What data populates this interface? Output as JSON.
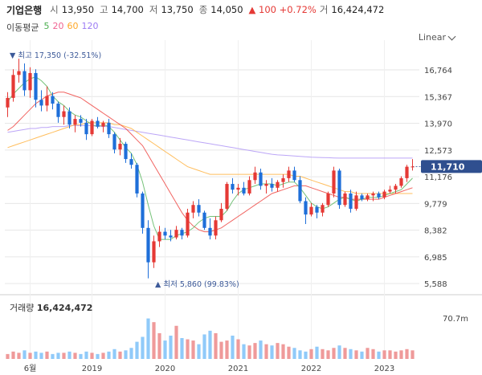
{
  "header": {
    "name": "기업은행",
    "open_label": "시",
    "open": "13,950",
    "high_label": "고",
    "high": "14,700",
    "low_label": "저",
    "low": "13,750",
    "close_label": "종",
    "close": "14,050",
    "change": "▲ 100 +0.72%",
    "volume_label": "거",
    "volume": "16,424,472"
  },
  "ma": {
    "title": "이동평균",
    "items": [
      {
        "label": "5",
        "color": "#4caf50"
      },
      {
        "label": "20",
        "color": "#f06292"
      },
      {
        "label": "60",
        "color": "#ffa726"
      },
      {
        "label": "120",
        "color": "#9c7cf4"
      }
    ]
  },
  "scale_mode": "Linear",
  "annotations": {
    "high": "▼ 최고 17,350 (-32.51%)",
    "low": "▲ 최저 5,860 (99.83%)"
  },
  "current_price": "11,710",
  "volume_section": {
    "title": "거래량",
    "value": "16,424,472",
    "axis_label": "70.7m"
  },
  "colors": {
    "up": "#e53935",
    "down": "#1e6fd9",
    "price_tag": "#2f4f8f",
    "grid": "#e6e6e6"
  },
  "chart_data": {
    "type": "candlestick",
    "title": "기업은행",
    "y_ticks": [
      16764,
      15367,
      13970,
      12573,
      11176,
      9779,
      8382,
      6985,
      5588
    ],
    "y_tick_labels": [
      "16,764",
      "15,367",
      "13,970",
      "12,573",
      "11,176",
      "9,779",
      "8,382",
      "6,985",
      "5,588"
    ],
    "ylim": [
      5300,
      17900
    ],
    "x_tick_labels": [
      "6월",
      "2019",
      "2020",
      "2021",
      "2022",
      "2023"
    ],
    "x_tick_index": [
      4,
      15,
      28,
      41,
      54,
      67
    ],
    "ohlc": [
      [
        14800,
        15600,
        14300,
        15300
      ],
      [
        15300,
        16800,
        15100,
        16500
      ],
      [
        16500,
        17350,
        16100,
        16700
      ],
      [
        16700,
        17100,
        15400,
        15700
      ],
      [
        15700,
        16900,
        15300,
        16600
      ],
      [
        16600,
        16800,
        14800,
        15200
      ],
      [
        15200,
        15700,
        14600,
        14900
      ],
      [
        14900,
        15900,
        14600,
        15400
      ],
      [
        15400,
        15600,
        14700,
        15000
      ],
      [
        15000,
        15100,
        14000,
        14300
      ],
      [
        14300,
        14900,
        13900,
        14600
      ],
      [
        14600,
        14800,
        13700,
        13900
      ],
      [
        13900,
        14400,
        13500,
        14200
      ],
      [
        14200,
        14400,
        13800,
        14000
      ],
      [
        14000,
        14200,
        13100,
        13400
      ],
      [
        13400,
        14200,
        13300,
        14100
      ],
      [
        14100,
        14300,
        13700,
        13800
      ],
      [
        13800,
        14100,
        13500,
        14000
      ],
      [
        14000,
        14200,
        13200,
        13400
      ],
      [
        13400,
        13500,
        12400,
        12600
      ],
      [
        12600,
        13200,
        12300,
        12900
      ],
      [
        12900,
        13000,
        11900,
        12100
      ],
      [
        12100,
        12400,
        11600,
        11800
      ],
      [
        11800,
        11900,
        10100,
        10300
      ],
      [
        10300,
        10400,
        8200,
        8500
      ],
      [
        8500,
        8900,
        5860,
        6700
      ],
      [
        6700,
        8100,
        6400,
        7800
      ],
      [
        7800,
        8600,
        7500,
        8300
      ],
      [
        8300,
        8500,
        7900,
        8100
      ],
      [
        8100,
        8400,
        7800,
        8000
      ],
      [
        8000,
        8600,
        7900,
        8400
      ],
      [
        8400,
        8500,
        7900,
        8100
      ],
      [
        8100,
        9500,
        8000,
        9300
      ],
      [
        9300,
        9900,
        9000,
        9700
      ],
      [
        9700,
        10000,
        9100,
        9300
      ],
      [
        9300,
        9400,
        8400,
        8500
      ],
      [
        8500,
        9000,
        7900,
        8100
      ],
      [
        8100,
        9100,
        7900,
        8900
      ],
      [
        8900,
        9800,
        8800,
        9500
      ],
      [
        9500,
        10900,
        9400,
        10800
      ],
      [
        10800,
        11100,
        10300,
        10500
      ],
      [
        10500,
        10800,
        10200,
        10600
      ],
      [
        10600,
        10900,
        10200,
        10300
      ],
      [
        10300,
        11200,
        10200,
        11000
      ],
      [
        11000,
        11700,
        10800,
        11400
      ],
      [
        11400,
        11600,
        10500,
        10700
      ],
      [
        10700,
        11000,
        10300,
        10800
      ],
      [
        10800,
        11100,
        10400,
        10600
      ],
      [
        10600,
        11000,
        10400,
        10900
      ],
      [
        10900,
        11300,
        10600,
        11100
      ],
      [
        11100,
        11700,
        10900,
        11500
      ],
      [
        11500,
        11700,
        10900,
        11000
      ],
      [
        11000,
        11200,
        9800,
        9900
      ],
      [
        9900,
        10100,
        8700,
        9200
      ],
      [
        9200,
        9800,
        9100,
        9600
      ],
      [
        9600,
        9700,
        9000,
        9300
      ],
      [
        9300,
        9800,
        9100,
        9700
      ],
      [
        9700,
        10400,
        9600,
        10300
      ],
      [
        10300,
        11700,
        10100,
        11500
      ],
      [
        11500,
        11600,
        9500,
        9700
      ],
      [
        9700,
        10400,
        9600,
        10300
      ],
      [
        10300,
        10500,
        9300,
        9500
      ],
      [
        9500,
        10400,
        9400,
        10200
      ],
      [
        10200,
        10300,
        9900,
        10000
      ],
      [
        10000,
        10300,
        9900,
        10200
      ],
      [
        10200,
        10400,
        9900,
        10300
      ],
      [
        10300,
        10400,
        10000,
        10100
      ],
      [
        10100,
        10500,
        10000,
        10400
      ],
      [
        10400,
        10700,
        10300,
        10500
      ],
      [
        10500,
        10800,
        10300,
        10700
      ],
      [
        10700,
        11200,
        10600,
        11100
      ],
      [
        11100,
        11800,
        10900,
        11700
      ],
      [
        11700,
        12100,
        11500,
        11710
      ]
    ],
    "volume": [
      4,
      6,
      5,
      7,
      5,
      6,
      5,
      6,
      4,
      5,
      5,
      6,
      5,
      4,
      6,
      5,
      4,
      5,
      6,
      8,
      6,
      7,
      9,
      14,
      18,
      33,
      30,
      21,
      15,
      19,
      27,
      17,
      16,
      15,
      12,
      20,
      23,
      21,
      14,
      15,
      19,
      16,
      12,
      11,
      13,
      15,
      12,
      11,
      13,
      12,
      10,
      9,
      7,
      6,
      8,
      10,
      8,
      7,
      9,
      11,
      9,
      8,
      7,
      6,
      9,
      8,
      6,
      7,
      7,
      6,
      7,
      8,
      7
    ],
    "ma5": [
      15100,
      15500,
      15800,
      16100,
      16300,
      16400,
      16200,
      15900,
      15400,
      15100,
      14900,
      14600,
      14400,
      14300,
      14100,
      13900,
      13800,
      13900,
      13800,
      13500,
      13100,
      12700,
      12400,
      11800,
      10900,
      9700,
      8600,
      7900,
      7900,
      7900,
      8100,
      8200,
      8300,
      8500,
      8800,
      9000,
      9100,
      9100,
      9100,
      9400,
      9900,
      10300,
      10500,
      10600,
      10700,
      10800,
      10800,
      10800,
      10700,
      10800,
      10900,
      10900,
      10600,
      10200,
      9800,
      9600,
      9500,
      9600,
      9800,
      10000,
      10100,
      10000,
      9900,
      10000,
      10100,
      10100,
      10100,
      10200,
      10300,
      10400,
      10500,
      10800,
      11100
    ],
    "ma20": [
      13600,
      13800,
      14100,
      14400,
      14700,
      15000,
      15200,
      15400,
      15500,
      15600,
      15600,
      15500,
      15400,
      15300,
      15100,
      14900,
      14700,
      14500,
      14300,
      14100,
      13900,
      13700,
      13400,
      13100,
      12800,
      12300,
      11800,
      11300,
      10800,
      10300,
      9800,
      9300,
      8900,
      8600,
      8400,
      8300,
      8300,
      8400,
      8500,
      8700,
      8900,
      9100,
      9300,
      9500,
      9700,
      9900,
      10100,
      10300,
      10400,
      10500,
      10600,
      10700,
      10700,
      10700,
      10600,
      10500,
      10400,
      10300,
      10200,
      10100,
      10100,
      10000,
      10000,
      10000,
      10000,
      10000,
      10000,
      10100,
      10200,
      10300,
      10400,
      10500,
      10600
    ],
    "ma60": [
      12700,
      12800,
      12900,
      13000,
      13100,
      13200,
      13300,
      13400,
      13500,
      13600,
      13700,
      13800,
      13900,
      13900,
      14000,
      14000,
      14000,
      14000,
      14000,
      13900,
      13900,
      13800,
      13700,
      13500,
      13300,
      13100,
      12900,
      12700,
      12500,
      12300,
      12100,
      11900,
      11700,
      11600,
      11500,
      11400,
      11300,
      11300,
      11300,
      11300,
      11300,
      11300,
      11300,
      11300,
      11300,
      11300,
      11300,
      11300,
      11300,
      11300,
      11300,
      11200,
      11200,
      11100,
      11000,
      10900,
      10800,
      10700,
      10600,
      10500,
      10400,
      10400,
      10300,
      10300,
      10300,
      10300,
      10300,
      10300,
      10300,
      10300,
      10300,
      10300,
      10300
    ],
    "ma120": [
      13500,
      13550,
      13600,
      13650,
      13700,
      13700,
      13750,
      13750,
      13800,
      13800,
      13800,
      13850,
      13850,
      13850,
      13850,
      13850,
      13800,
      13800,
      13800,
      13750,
      13700,
      13650,
      13600,
      13550,
      13500,
      13450,
      13400,
      13350,
      13300,
      13250,
      13200,
      13150,
      13100,
      13050,
      13000,
      12950,
      12900,
      12850,
      12800,
      12750,
      12700,
      12650,
      12600,
      12550,
      12500,
      12450,
      12400,
      12350,
      12320,
      12300,
      12280,
      12260,
      12240,
      12220,
      12200,
      12190,
      12180,
      12170,
      12160,
      12150,
      12150,
      12150,
      12150,
      12150,
      12150,
      12150,
      12150,
      12150,
      12150,
      12150,
      12150,
      12150,
      12150
    ]
  }
}
